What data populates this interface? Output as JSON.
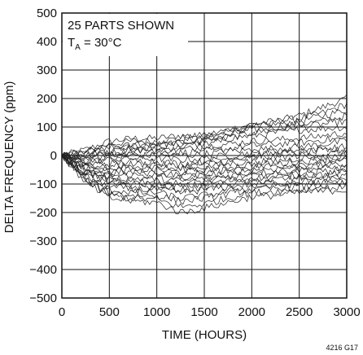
{
  "chart_data": {
    "type": "line",
    "xlabel": "TIME (HOURS)",
    "ylabel": "DELTA FREQUENCY (ppm)",
    "xlim": [
      0,
      3000
    ],
    "ylim": [
      -500,
      500
    ],
    "x_ticks": [
      "0",
      "500",
      "1000",
      "1500",
      "2000",
      "2500",
      "3000"
    ],
    "y_ticks": [
      "500",
      "400",
      "300",
      "200",
      "100",
      "0",
      "−100",
      "−200",
      "−300",
      "−400",
      "−500"
    ],
    "grid": true,
    "annotation_line1": "25 PARTS SHOWN",
    "annotation_line2_main": "T",
    "annotation_line2_sub": "A",
    "annotation_line2_rest": " = 30°C",
    "figure_code": "4216 G17",
    "x": [
      0,
      250,
      500,
      750,
      1000,
      1250,
      1500,
      1750,
      2000,
      2250,
      2500,
      2750,
      3000
    ],
    "series": [
      {
        "values": [
          0,
          20,
          50,
          60,
          60,
          70,
          70,
          85,
          100,
          120,
          140,
          170,
          200
        ]
      },
      {
        "values": [
          0,
          10,
          40,
          50,
          50,
          60,
          70,
          90,
          110,
          120,
          130,
          150,
          180
        ]
      },
      {
        "values": [
          0,
          5,
          30,
          40,
          40,
          50,
          60,
          80,
          100,
          110,
          120,
          140,
          160
        ]
      },
      {
        "values": [
          0,
          0,
          20,
          30,
          30,
          40,
          50,
          70,
          90,
          100,
          110,
          120,
          140
        ]
      },
      {
        "values": [
          0,
          -5,
          10,
          20,
          20,
          30,
          40,
          60,
          80,
          90,
          100,
          110,
          120
        ]
      },
      {
        "values": [
          0,
          15,
          30,
          35,
          40,
          45,
          50,
          60,
          70,
          80,
          90,
          95,
          100
        ]
      },
      {
        "values": [
          0,
          0,
          10,
          15,
          20,
          20,
          30,
          40,
          50,
          55,
          60,
          70,
          80
        ]
      },
      {
        "values": [
          0,
          -10,
          0,
          5,
          10,
          10,
          15,
          25,
          35,
          40,
          45,
          55,
          60
        ]
      },
      {
        "values": [
          0,
          -20,
          -10,
          0,
          0,
          0,
          5,
          15,
          20,
          25,
          30,
          40,
          50
        ]
      },
      {
        "values": [
          0,
          -20,
          -15,
          -10,
          -10,
          -15,
          -10,
          0,
          10,
          15,
          20,
          25,
          30
        ]
      },
      {
        "values": [
          0,
          -30,
          -30,
          -20,
          -20,
          -30,
          -20,
          -10,
          0,
          5,
          10,
          15,
          20
        ]
      },
      {
        "values": [
          0,
          -30,
          -40,
          -30,
          -30,
          -40,
          -30,
          -20,
          -10,
          -5,
          0,
          5,
          10
        ]
      },
      {
        "values": [
          0,
          -40,
          -50,
          -40,
          -40,
          -50,
          -40,
          -30,
          -20,
          -20,
          -10,
          -5,
          0
        ]
      },
      {
        "values": [
          0,
          -40,
          -55,
          -50,
          -50,
          -60,
          -50,
          -40,
          -30,
          -30,
          -20,
          -15,
          -10
        ]
      },
      {
        "values": [
          0,
          -50,
          -60,
          -60,
          -60,
          -70,
          -60,
          -50,
          -40,
          -35,
          -30,
          -25,
          -20
        ]
      },
      {
        "values": [
          0,
          -50,
          -70,
          -70,
          -70,
          -80,
          -70,
          -60,
          -50,
          -45,
          -40,
          -35,
          -30
        ]
      },
      {
        "values": [
          0,
          -55,
          -80,
          -80,
          -80,
          -90,
          -80,
          -70,
          -60,
          -55,
          -50,
          -45,
          -40
        ]
      },
      {
        "values": [
          0,
          -60,
          -85,
          -90,
          -90,
          -100,
          -90,
          -80,
          -70,
          -65,
          -60,
          -55,
          -50
        ]
      },
      {
        "values": [
          0,
          -60,
          -90,
          -100,
          -100,
          -110,
          -100,
          -90,
          -80,
          -75,
          -70,
          -65,
          -60
        ]
      },
      {
        "values": [
          0,
          -70,
          -100,
          -110,
          -110,
          -120,
          -110,
          -100,
          -90,
          -85,
          -80,
          -75,
          -70
        ]
      },
      {
        "values": [
          0,
          -75,
          -110,
          -120,
          -120,
          -130,
          -120,
          -110,
          -100,
          -95,
          -90,
          -85,
          -80
        ]
      },
      {
        "values": [
          0,
          -80,
          -120,
          -130,
          -130,
          -150,
          -140,
          -125,
          -110,
          -105,
          -100,
          -95,
          -90
        ]
      },
      {
        "values": [
          0,
          -85,
          -130,
          -140,
          -140,
          -160,
          -150,
          -135,
          -120,
          -115,
          -110,
          -105,
          -100
        ]
      },
      {
        "values": [
          0,
          -90,
          -140,
          -150,
          -155,
          -180,
          -170,
          -150,
          -130,
          -125,
          -120,
          -115,
          -110
        ]
      },
      {
        "values": [
          0,
          -95,
          -150,
          -160,
          -165,
          -200,
          -185,
          -165,
          -145,
          -140,
          -130,
          -125,
          -120
        ]
      }
    ]
  }
}
